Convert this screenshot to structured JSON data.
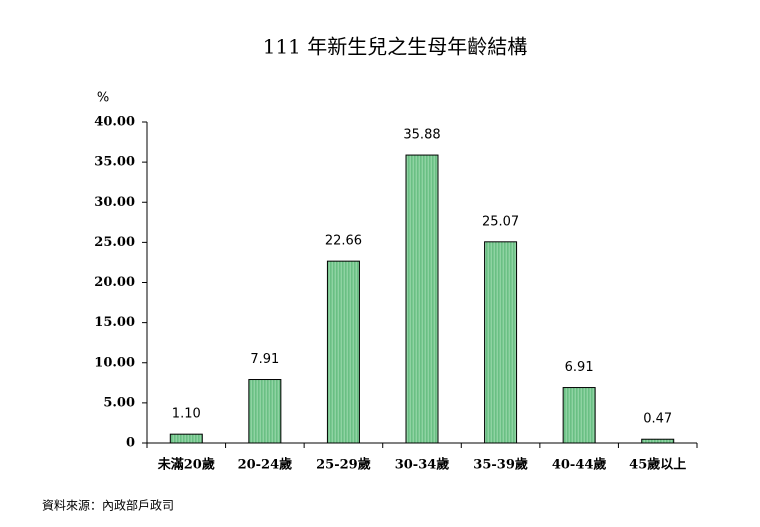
{
  "chart_data": {
    "type": "bar",
    "title": "111 年新生兒之生母年齡結構",
    "y_label": "%",
    "categories": [
      "未滿20歲",
      "20-24歲",
      "25-29歲",
      "30-34歲",
      "35-39歲",
      "40-44歲",
      "45歲以上"
    ],
    "values": [
      1.1,
      7.91,
      22.66,
      35.88,
      25.07,
      6.91,
      0.47
    ],
    "value_labels": [
      "1.10",
      "7.91",
      "22.66",
      "35.88",
      "25.07",
      "6.91",
      "0.47"
    ],
    "color": "#8fd3a3",
    "ylim": [
      0,
      40
    ],
    "yticks": [
      0,
      {
        "value": 5,
        "label": "5.00"
      },
      {
        "value": 10,
        "label": "10.00"
      },
      {
        "value": 15,
        "label": "15.00"
      },
      {
        "value": 20,
        "label": "20.00"
      },
      {
        "value": 25,
        "label": "25.00"
      },
      {
        "value": 30,
        "label": "30.00"
      },
      {
        "value": 35,
        "label": "35.00"
      },
      {
        "value": 40,
        "label": "40.00"
      }
    ],
    "source": "資料來源：內政部戶政司"
  }
}
